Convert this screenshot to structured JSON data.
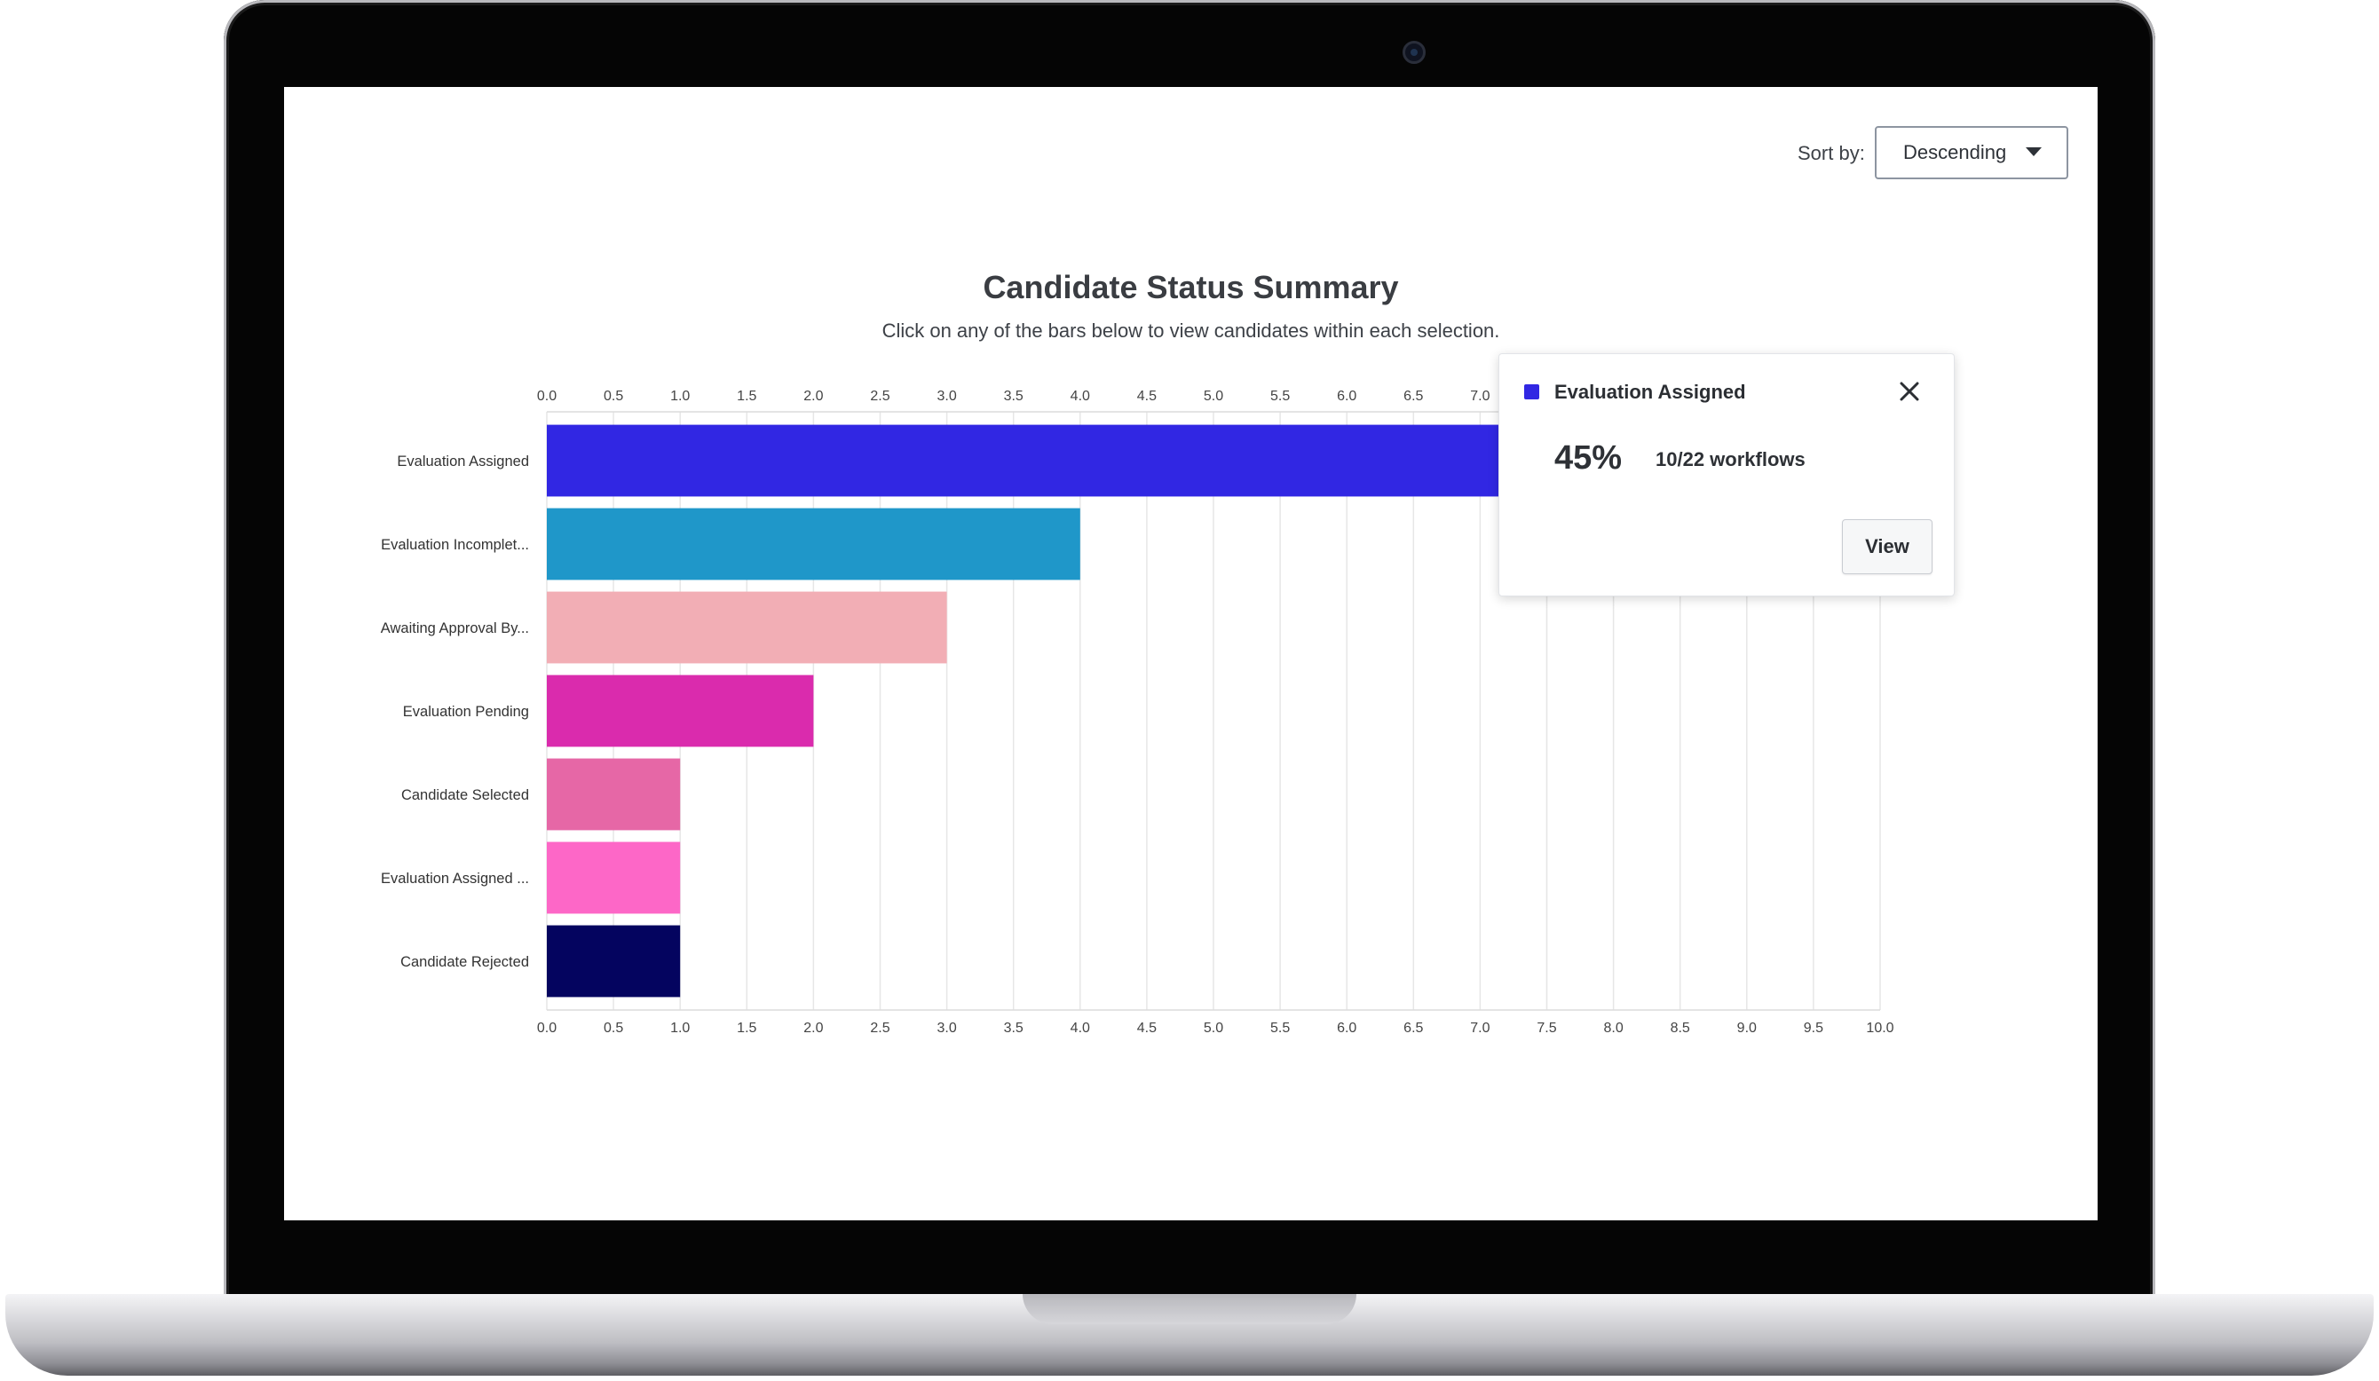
{
  "controls": {
    "sort_label": "Sort by:",
    "sort_value": "Descending"
  },
  "chart_data": {
    "type": "bar",
    "orientation": "horizontal",
    "title": "Candidate Status Summary",
    "subtitle": "Click on any of the bars below to view candidates within each selection.",
    "categories": [
      "Evaluation Assigned",
      "Evaluation Incomplet...",
      "Awaiting Approval By...",
      "Evaluation Pending",
      "Candidate Selected",
      "Evaluation Assigned ...",
      "Candidate Rejected"
    ],
    "values": [
      10,
      4,
      3,
      2,
      1,
      1,
      1
    ],
    "colors": [
      "#3127e3",
      "#1f97c9",
      "#f2aeb5",
      "#da2bad",
      "#e667a6",
      "#fd67c7",
      "#04045f"
    ],
    "xlim": [
      0,
      10
    ],
    "ticks": [
      "0.0",
      "0.5",
      "1.0",
      "1.5",
      "2.0",
      "2.5",
      "3.0",
      "3.5",
      "4.0",
      "4.5",
      "5.0",
      "5.5",
      "6.0",
      "6.5",
      "7.0",
      "7.5",
      "8.0",
      "8.5",
      "9.0",
      "9.5",
      "10.0"
    ],
    "tick_positions": [
      "top",
      "bottom"
    ],
    "grid": true,
    "legend": "none"
  },
  "tooltip": {
    "title": "Evaluation Assigned",
    "color": "#3127e3",
    "percent": "45%",
    "count": "10/22 workflows",
    "button_label": "View",
    "close_icon": "close-icon"
  }
}
